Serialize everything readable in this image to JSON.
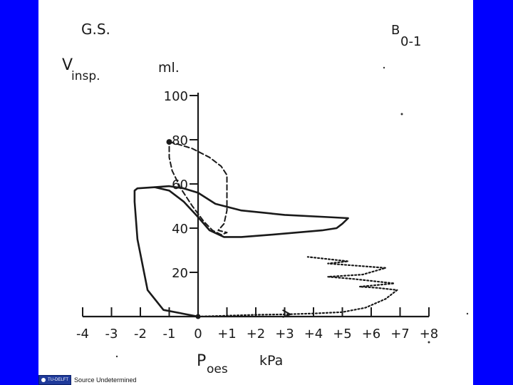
{
  "colors": {
    "background": "#0000ff",
    "panel": "#ffffff",
    "ink": "#1a1a1a"
  },
  "chart_data": {
    "type": "line",
    "corner_left": "G.S.",
    "corner_right": "B",
    "corner_right_sub": "0-1",
    "ylabel": "V",
    "ylabel_sub": "insp.",
    "yunit": "ml.",
    "xlabel": "P",
    "xlabel_sub": "oes",
    "xunit": "kPa",
    "xlim": [
      -4,
      8
    ],
    "ylim": [
      0,
      100
    ],
    "x_ticks": [
      -4,
      -3,
      -2,
      -1,
      0,
      1,
      2,
      3,
      4,
      5,
      6,
      7,
      8
    ],
    "x_tick_labels": [
      "-4",
      "-3",
      "-2",
      "-1",
      "0",
      "+1",
      "+2",
      "+3",
      "+4",
      "+5",
      "+6",
      "+7",
      "+8"
    ],
    "y_ticks": [
      20,
      40,
      60,
      80,
      100
    ],
    "y_tick_labels": [
      "20",
      "40",
      "60",
      "80",
      "100"
    ],
    "grid": false,
    "series": [
      {
        "style": "solid",
        "points": [
          [
            0,
            0
          ],
          [
            -1.2,
            3
          ],
          [
            -1.75,
            12
          ],
          [
            -2.1,
            35
          ],
          [
            -2.2,
            52
          ],
          [
            -2.2,
            57
          ],
          [
            -2.1,
            58
          ],
          [
            -1.5,
            58.5
          ],
          [
            -1,
            59
          ],
          [
            -0.5,
            58
          ],
          [
            0,
            56
          ],
          [
            0.6,
            51
          ],
          [
            1.5,
            48
          ],
          [
            3,
            46
          ],
          [
            4.5,
            45
          ],
          [
            5.2,
            44.5
          ],
          [
            5,
            42
          ],
          [
            4.8,
            40
          ],
          [
            4.3,
            39
          ],
          [
            2.5,
            37
          ],
          [
            1.5,
            36
          ],
          [
            0.9,
            36
          ],
          [
            0.4,
            39
          ],
          [
            0,
            45
          ],
          [
            -0.5,
            52
          ],
          [
            -1,
            57
          ],
          [
            -1.5,
            58.5
          ]
        ]
      },
      {
        "style": "dashed",
        "points": [
          [
            -1,
            79
          ],
          [
            -0.7,
            78
          ],
          [
            -0.2,
            76
          ],
          [
            0.4,
            72
          ],
          [
            0.8,
            68
          ],
          [
            1,
            64
          ],
          [
            1,
            56
          ],
          [
            1,
            48
          ],
          [
            0.9,
            42
          ],
          [
            0.7,
            39
          ],
          [
            1,
            38
          ],
          [
            0.8,
            37
          ],
          [
            0.5,
            39
          ],
          [
            0.2,
            43
          ],
          [
            -0.2,
            50
          ],
          [
            -0.6,
            58
          ],
          [
            -0.9,
            66
          ],
          [
            -1,
            72
          ],
          [
            -1,
            79
          ]
        ]
      },
      {
        "style": "dotted",
        "points": [
          [
            0,
            0
          ],
          [
            1,
            0.4
          ],
          [
            2,
            0.8
          ],
          [
            3,
            1
          ],
          [
            4,
            1.4
          ],
          [
            5,
            2
          ],
          [
            5.8,
            4
          ],
          [
            6.5,
            8
          ],
          [
            6.9,
            12
          ],
          [
            6.2,
            13
          ],
          [
            5.6,
            13.5
          ],
          [
            6.8,
            15
          ],
          [
            5.4,
            17
          ],
          [
            4.5,
            18
          ],
          [
            5.7,
            19
          ],
          [
            6.5,
            22
          ],
          [
            5.5,
            23
          ],
          [
            4.5,
            24
          ],
          [
            5.2,
            25
          ],
          [
            4.5,
            26
          ],
          [
            3.8,
            27
          ]
        ]
      }
    ],
    "annotations": [
      "arrow on dotted trace near +3 kPa"
    ]
  },
  "footer": {
    "source": "Source Undetermined",
    "logo_text": "TU-DELFT"
  }
}
